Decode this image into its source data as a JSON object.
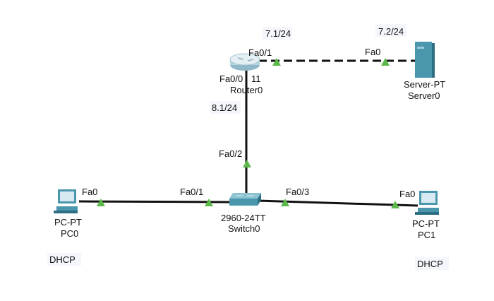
{
  "colors": {
    "link": "#111111",
    "port_up": "#5bb94a",
    "device": "#4a96ad"
  },
  "devices": {
    "router": {
      "model_fragment": "11",
      "name": "Router0",
      "icon": "router-icon"
    },
    "server": {
      "model": "Server-PT",
      "name": "Server0",
      "icon": "server-icon"
    },
    "switch": {
      "model": "2960-24TT",
      "name": "Switch0",
      "icon": "switch-icon"
    },
    "pc0": {
      "model": "PC-PT",
      "name": "PC0",
      "icon": "pc-icon",
      "note": "DHCP"
    },
    "pc1": {
      "model": "PC-PT",
      "name": "PC1",
      "icon": "pc-icon",
      "note": "DHCP"
    }
  },
  "ports": {
    "router_fa01": "Fa0/1",
    "router_fa00": "Fa0/0",
    "server_fa0": "Fa0",
    "switch_fa02": "Fa0/2",
    "switch_fa01": "Fa0/1",
    "switch_fa03": "Fa0/3",
    "pc0_fa0": "Fa0",
    "pc1_fa0": "Fa0"
  },
  "addresses": {
    "router_fa01": "7.1/24",
    "server": "7.2/24",
    "router_fa00": "8.1/24"
  }
}
